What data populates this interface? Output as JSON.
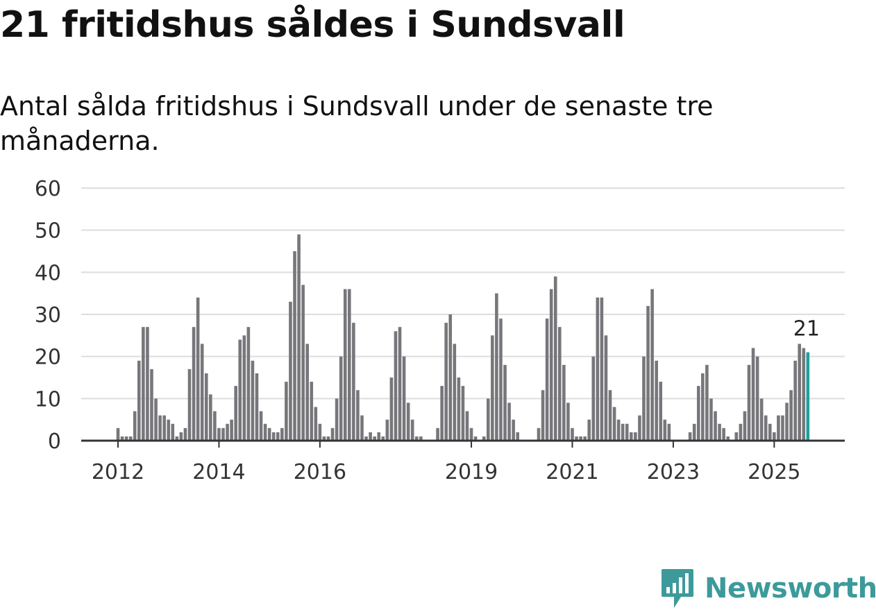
{
  "title": "21 fritidshus såldes i Sundsvall",
  "subtitle": "Antal sålda fritidshus i Sundsvall under de senaste tre månaderna.",
  "brand": {
    "name": "Newsworthy",
    "icon": "newsworthy-logo-icon",
    "color": "#3d9a9a"
  },
  "colors": {
    "bar": "#77767a",
    "highlight": "#21a09a",
    "grid": "#dddddd",
    "axis": "#333333"
  },
  "chart_data": {
    "type": "bar",
    "title": "21 fritidshus såldes i Sundsvall",
    "ylabel": "",
    "xlabel": "",
    "ylim": [
      0,
      60
    ],
    "yticks": [
      0,
      10,
      20,
      30,
      40,
      50,
      60
    ],
    "xticks": [
      {
        "label": "2012",
        "index": 0
      },
      {
        "label": "2014",
        "index": 24
      },
      {
        "label": "2016",
        "index": 48
      },
      {
        "label": "2019",
        "index": 84
      },
      {
        "label": "2021",
        "index": 108
      },
      {
        "label": "2023",
        "index": 132
      },
      {
        "label": "2025",
        "index": 156
      }
    ],
    "start": "2012-01",
    "values": [
      3,
      1,
      1,
      1,
      7,
      19,
      27,
      27,
      17,
      10,
      6,
      6,
      5,
      4,
      1,
      2,
      3,
      17,
      27,
      34,
      23,
      16,
      11,
      7,
      3,
      3,
      4,
      5,
      13,
      24,
      25,
      27,
      19,
      16,
      7,
      4,
      3,
      2,
      2,
      3,
      14,
      33,
      45,
      49,
      37,
      23,
      14,
      8,
      4,
      1,
      1,
      3,
      10,
      20,
      36,
      36,
      28,
      12,
      6,
      1,
      2,
      1,
      2,
      1,
      5,
      15,
      26,
      27,
      20,
      9,
      5,
      1,
      1,
      0,
      0,
      0,
      3,
      13,
      28,
      30,
      23,
      15,
      13,
      7,
      3,
      1,
      0,
      1,
      10,
      25,
      35,
      29,
      18,
      9,
      5,
      2,
      0,
      0,
      0,
      0,
      3,
      12,
      29,
      36,
      39,
      27,
      18,
      9,
      3,
      1,
      1,
      1,
      5,
      20,
      34,
      34,
      25,
      12,
      8,
      5,
      4,
      4,
      2,
      2,
      6,
      20,
      32,
      36,
      19,
      14,
      5,
      4,
      0,
      0,
      0,
      0,
      2,
      4,
      13,
      16,
      18,
      10,
      7,
      4,
      3,
      1,
      0,
      2,
      4,
      7,
      18,
      22,
      20,
      10,
      6,
      4,
      2,
      6,
      6,
      9,
      12,
      19,
      23,
      22,
      21
    ],
    "highlight_index": 164,
    "highlight_label": "21"
  }
}
